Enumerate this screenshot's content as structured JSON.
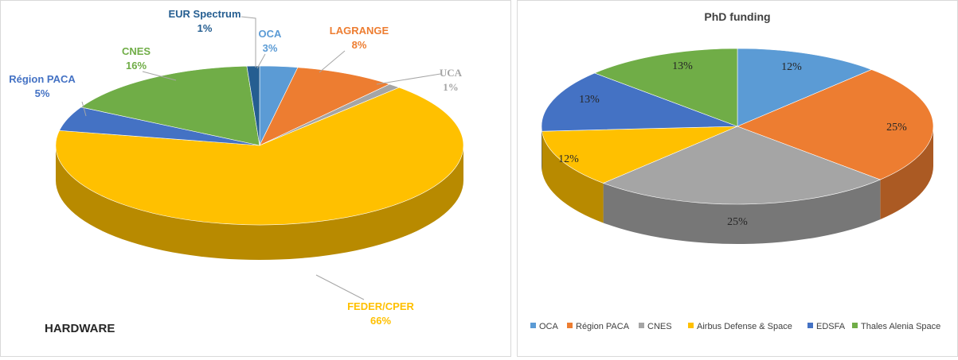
{
  "chart_data": [
    {
      "type": "pie",
      "title": "HARDWARE",
      "slices": [
        {
          "name": "OCA",
          "value": 3,
          "label": "3%",
          "color": "#5b9bd5"
        },
        {
          "name": "LAGRANGE",
          "value": 8,
          "label": "8%",
          "color": "#ed7d31"
        },
        {
          "name": "UCA",
          "value": 1,
          "label": "1%",
          "color": "#a5a5a5"
        },
        {
          "name": "FEDER/CPER",
          "value": 66,
          "label": "66%",
          "color": "#ffc000"
        },
        {
          "name": "Région PACA",
          "value": 5,
          "label": "5%",
          "color": "#4472c4"
        },
        {
          "name": "CNES",
          "value": 16,
          "label": "16%",
          "color": "#70ad47"
        },
        {
          "name": "EUR Spectrum",
          "value": 1,
          "label": "1%",
          "color": "#255e91"
        }
      ]
    },
    {
      "type": "pie",
      "title": "PhD funding",
      "slices": [
        {
          "name": "OCA",
          "value": 12,
          "label": "12%",
          "color": "#5b9bd5"
        },
        {
          "name": "Région PACA",
          "value": 25,
          "label": "25%",
          "color": "#ed7d31"
        },
        {
          "name": "CNES",
          "value": 25,
          "label": "25%",
          "color": "#a5a5a5"
        },
        {
          "name": "Airbus Defense & Space",
          "value": 12,
          "label": "12%",
          "color": "#ffc000"
        },
        {
          "name": "EDSFA",
          "value": 13,
          "label": "13%",
          "color": "#4472c4"
        },
        {
          "name": "Thales Alenia Space",
          "value": 13,
          "label": "13%",
          "color": "#70ad47"
        }
      ],
      "legend": [
        "OCA",
        "Région PACA",
        "CNES",
        "Airbus Defense & Space",
        "EDSFA",
        "Thales Alenia Space"
      ]
    }
  ]
}
